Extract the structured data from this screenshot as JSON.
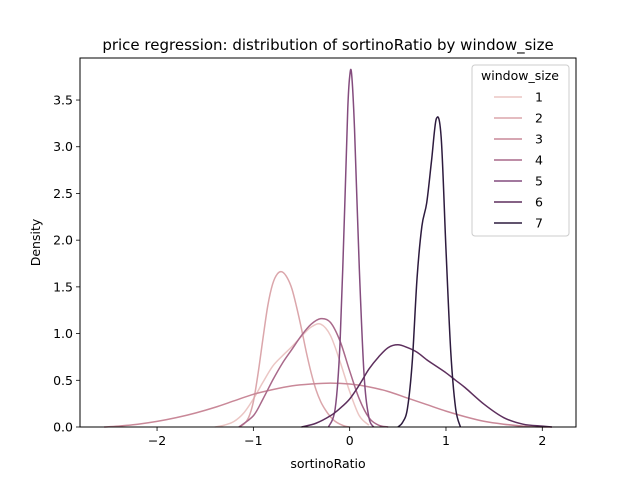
{
  "chart_data": {
    "type": "line",
    "title": "price regression: distribution of sortinoRatio by window_size",
    "xlabel": "sortinoRatio",
    "ylabel": "Density",
    "xlim": [
      -2.8,
      2.35
    ],
    "ylim": [
      0,
      3.95
    ],
    "xticks": [
      -2,
      -1,
      0,
      1,
      2
    ],
    "xtick_labels": [
      "−2",
      "−1",
      "0",
      "1",
      "2"
    ],
    "yticks": [
      0.0,
      0.5,
      1.0,
      1.5,
      2.0,
      2.5,
      3.0,
      3.5
    ],
    "ytick_labels": [
      "0.0",
      "0.5",
      "1.0",
      "1.5",
      "2.0",
      "2.5",
      "3.0",
      "3.5"
    ],
    "grid": false,
    "legend": {
      "title": "window_size",
      "placement": "top-right"
    },
    "series": [
      {
        "name": "1",
        "color": "#ebc6c4",
        "x": [
          -1.4,
          -1.3,
          -1.2,
          -1.1,
          -1.0,
          -0.9,
          -0.8,
          -0.7,
          -0.6,
          -0.5,
          -0.4,
          -0.3,
          -0.2,
          -0.1,
          0.0,
          0.1,
          0.2
        ],
        "y": [
          0.0,
          0.02,
          0.06,
          0.15,
          0.3,
          0.48,
          0.65,
          0.76,
          0.86,
          0.97,
          1.07,
          1.1,
          0.98,
          0.7,
          0.38,
          0.12,
          0.02
        ]
      },
      {
        "name": "2",
        "color": "#dba6ab",
        "x": [
          -1.15,
          -1.1,
          -1.05,
          -1.0,
          -0.95,
          -0.9,
          -0.85,
          -0.8,
          -0.75,
          -0.7,
          -0.65,
          -0.6,
          -0.55,
          -0.5,
          -0.45,
          -0.4,
          -0.35,
          -0.3,
          -0.25,
          -0.2,
          -0.15,
          -0.1,
          -0.05,
          0.0
        ],
        "y": [
          0.0,
          0.03,
          0.1,
          0.27,
          0.58,
          0.95,
          1.3,
          1.53,
          1.64,
          1.66,
          1.6,
          1.48,
          1.28,
          1.05,
          0.8,
          0.58,
          0.4,
          0.27,
          0.18,
          0.11,
          0.06,
          0.03,
          0.01,
          0.0
        ]
      },
      {
        "name": "3",
        "color": "#c98898",
        "x": [
          -2.55,
          -2.4,
          -2.2,
          -2.0,
          -1.8,
          -1.6,
          -1.4,
          -1.2,
          -1.0,
          -0.8,
          -0.6,
          -0.4,
          -0.2,
          0.0,
          0.2,
          0.4,
          0.6,
          0.8,
          1.0,
          1.2,
          1.4,
          1.6,
          1.8,
          2.0,
          2.1
        ],
        "y": [
          0.0,
          0.01,
          0.03,
          0.06,
          0.1,
          0.15,
          0.21,
          0.28,
          0.35,
          0.4,
          0.44,
          0.46,
          0.47,
          0.46,
          0.43,
          0.38,
          0.31,
          0.24,
          0.17,
          0.11,
          0.06,
          0.03,
          0.01,
          0.0,
          0.0
        ]
      },
      {
        "name": "4",
        "color": "#a9698a",
        "x": [
          -1.15,
          -1.0,
          -0.9,
          -0.8,
          -0.7,
          -0.6,
          -0.5,
          -0.4,
          -0.3,
          -0.2,
          -0.1,
          0.0,
          0.1,
          0.2,
          0.3,
          0.4
        ],
        "y": [
          0.0,
          0.12,
          0.3,
          0.5,
          0.68,
          0.83,
          0.98,
          1.1,
          1.16,
          1.12,
          0.92,
          0.6,
          0.3,
          0.1,
          0.02,
          0.0
        ]
      },
      {
        "name": "5",
        "color": "#844c7e",
        "x": [
          -0.22,
          -0.15,
          -0.1,
          -0.05,
          -0.02,
          0.0,
          0.02,
          0.05,
          0.1,
          0.15,
          0.2,
          0.25
        ],
        "y": [
          0.0,
          0.2,
          0.9,
          2.4,
          3.4,
          3.75,
          3.78,
          3.2,
          1.7,
          0.55,
          0.1,
          0.0
        ]
      },
      {
        "name": "6",
        "color": "#5d2f5d",
        "x": [
          -0.5,
          -0.35,
          -0.2,
          -0.1,
          0.0,
          0.1,
          0.2,
          0.3,
          0.4,
          0.5,
          0.6,
          0.7,
          0.8,
          0.9,
          1.0,
          1.1,
          1.2,
          1.4,
          1.6,
          1.8,
          2.0,
          2.1
        ],
        "y": [
          0.0,
          0.04,
          0.12,
          0.2,
          0.3,
          0.45,
          0.62,
          0.75,
          0.85,
          0.88,
          0.85,
          0.8,
          0.72,
          0.65,
          0.58,
          0.5,
          0.42,
          0.24,
          0.1,
          0.03,
          0.01,
          0.0
        ]
      },
      {
        "name": "7",
        "color": "#2d1b3e",
        "x": [
          0.5,
          0.55,
          0.6,
          0.65,
          0.7,
          0.75,
          0.8,
          0.85,
          0.9,
          0.95,
          1.0,
          1.05,
          1.1,
          1.15
        ],
        "y": [
          0.0,
          0.05,
          0.2,
          0.7,
          1.6,
          2.15,
          2.4,
          2.85,
          3.3,
          3.1,
          1.9,
          0.8,
          0.2,
          0.0
        ]
      }
    ]
  }
}
